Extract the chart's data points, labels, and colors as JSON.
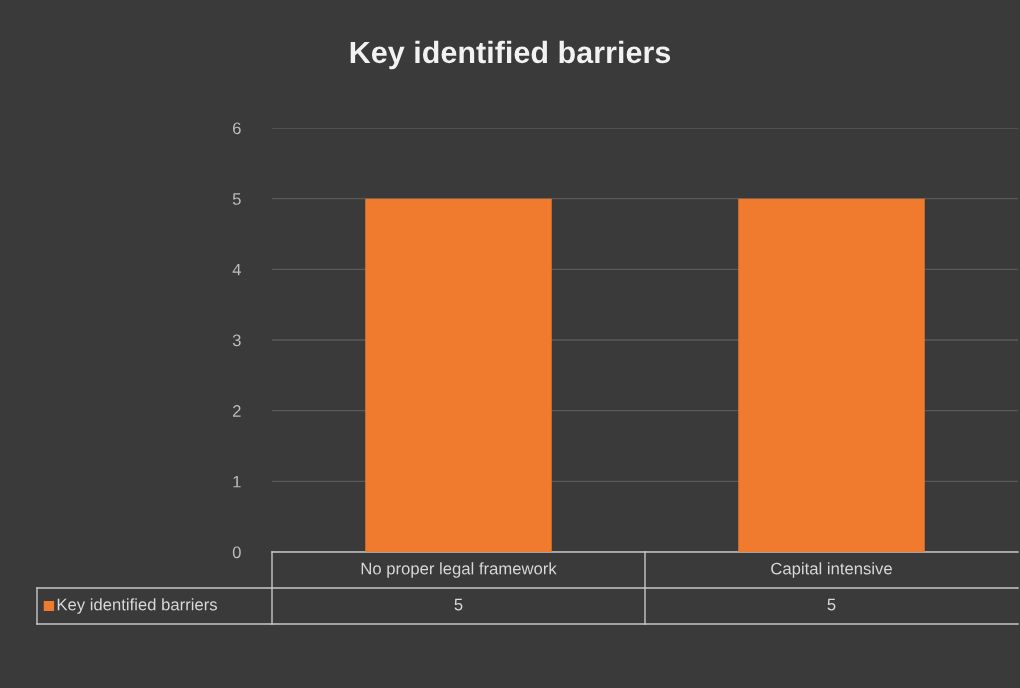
{
  "chart_data": {
    "type": "bar",
    "title": "Key identified barriers",
    "categories": [
      "No proper legal framework",
      "Capital intensive"
    ],
    "series": [
      {
        "name": "Key identified barriers",
        "color": "#f07a2e",
        "values": [
          5,
          5
        ]
      }
    ],
    "ylim": [
      0,
      6
    ],
    "yticks": [
      0,
      1,
      2,
      3,
      4,
      5,
      6
    ],
    "grid": "y",
    "data_labels": true,
    "legend": "bottom left"
  }
}
